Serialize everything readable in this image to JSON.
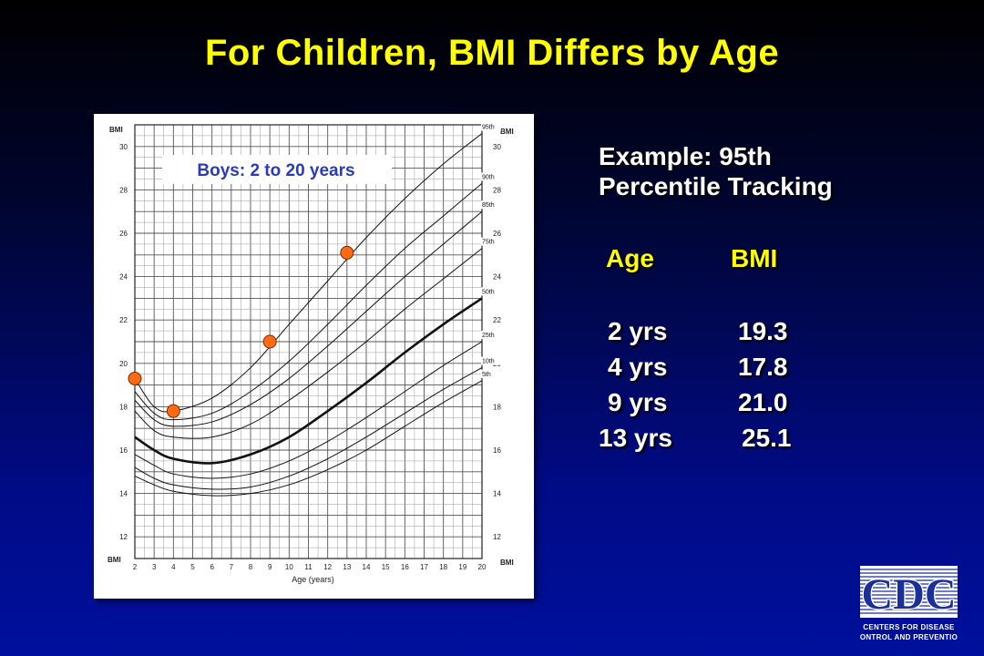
{
  "title": "For Children, BMI Differs by Age",
  "side": {
    "line1": "Example: 95th",
    "line2": "Percentile Tracking",
    "col_age": "Age",
    "col_bmi": "BMI",
    "rows": [
      {
        "age": "2 yrs",
        "bmi": "19.3"
      },
      {
        "age": "4 yrs",
        "bmi": "17.8"
      },
      {
        "age": "9 yrs",
        "bmi": "21.0"
      },
      {
        "age": "13 yrs",
        "bmi": "25.1"
      }
    ]
  },
  "logo": {
    "letters": "CDC",
    "line1": "Centers for Disease",
    "line2": "Control and Prevention"
  },
  "colors": {
    "title": "#ffff00",
    "marker": "#ff6a13",
    "label_box": "#2a3ab8"
  },
  "chart_data": {
    "type": "line",
    "inset_label": "Boys: 2 to 20 years",
    "xlabel": "Age (years)",
    "ylabel_left": "BMI",
    "ylabel_right": "BMI",
    "xlim": [
      2,
      20
    ],
    "ylim": [
      11,
      31
    ],
    "x_ticks": [
      2,
      3,
      4,
      5,
      6,
      7,
      8,
      9,
      10,
      11,
      12,
      13,
      14,
      15,
      16,
      17,
      18,
      19,
      20
    ],
    "y_ticks": [
      12,
      14,
      16,
      18,
      20,
      22,
      24,
      26,
      28,
      30
    ],
    "grid": true,
    "x": [
      2,
      3,
      4,
      6,
      8,
      10,
      12,
      14,
      16,
      18,
      20
    ],
    "series": [
      {
        "name": "95th",
        "values": [
          19.3,
          18.0,
          17.8,
          18.4,
          19.8,
          21.8,
          23.8,
          25.8,
          27.6,
          29.2,
          30.6
        ]
      },
      {
        "name": "90th",
        "values": [
          18.7,
          17.7,
          17.4,
          17.7,
          18.7,
          20.1,
          21.8,
          23.6,
          25.3,
          26.8,
          28.3
        ]
      },
      {
        "name": "85th",
        "values": [
          18.3,
          17.4,
          17.1,
          17.3,
          18.1,
          19.3,
          20.8,
          22.4,
          24.0,
          25.5,
          27.0
        ]
      },
      {
        "name": "75th",
        "values": [
          17.8,
          16.9,
          16.6,
          16.6,
          17.2,
          18.3,
          19.6,
          21.0,
          22.5,
          23.9,
          25.3
        ]
      },
      {
        "name": "50th",
        "values": [
          16.6,
          16.0,
          15.6,
          15.4,
          15.8,
          16.6,
          17.8,
          19.1,
          20.5,
          21.8,
          23.0
        ]
      },
      {
        "name": "25th",
        "values": [
          15.8,
          15.3,
          14.9,
          14.7,
          14.9,
          15.5,
          16.4,
          17.5,
          18.7,
          19.9,
          21.0
        ]
      },
      {
        "name": "10th",
        "values": [
          15.2,
          14.7,
          14.4,
          14.2,
          14.3,
          14.8,
          15.6,
          16.6,
          17.7,
          18.8,
          19.8
        ]
      },
      {
        "name": "5th",
        "values": [
          14.8,
          14.4,
          14.1,
          13.9,
          14.0,
          14.4,
          15.1,
          16.0,
          17.1,
          18.2,
          19.2
        ]
      }
    ],
    "highlight_points": [
      {
        "x": 2,
        "y": 19.3
      },
      {
        "x": 4,
        "y": 17.8
      },
      {
        "x": 9,
        "y": 21.0
      },
      {
        "x": 13,
        "y": 25.1
      }
    ]
  }
}
